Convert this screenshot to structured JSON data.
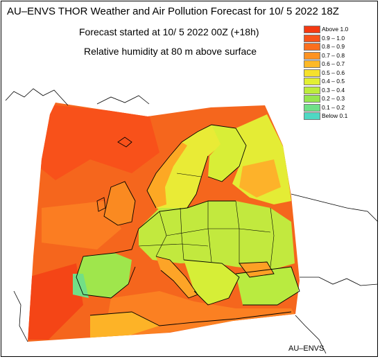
{
  "header": {
    "title": "AU–ENVS THOR Weather and Air Pollution Forecast for 10/ 5 2022  18Z",
    "forecast_started": "Forecast started at 10/ 5 2022  00Z (+18h)",
    "field": "Relative humidity at 80 m above surface"
  },
  "legend": {
    "items": [
      {
        "label": "Above   1.0",
        "color": "#f43a12"
      },
      {
        "label": "0.9  –  1.0",
        "color": "#f8541a"
      },
      {
        "label": "0.8  –  0.9",
        "color": "#fb6f1e"
      },
      {
        "label": "0.7  –  0.8",
        "color": "#fd9322"
      },
      {
        "label": "0.6  –  0.7",
        "color": "#fdb927"
      },
      {
        "label": "0.5  –  0.6",
        "color": "#f6e12c"
      },
      {
        "label": "0.4  –  0.5",
        "color": "#e2ef33"
      },
      {
        "label": "0.3  –  0.4",
        "color": "#bdec3c"
      },
      {
        "label": "0.2  –  0.3",
        "color": "#97e64f"
      },
      {
        "label": "0.1  –  0.2",
        "color": "#6fe089"
      },
      {
        "label": "Below   0.1",
        "color": "#4fd8c3"
      }
    ]
  },
  "footer": {
    "brand": "AU–ENVS"
  },
  "colors": {
    "ocean_high": "#f46a1e",
    "land_mid": "#c7e83d",
    "coastline": "#000000"
  }
}
